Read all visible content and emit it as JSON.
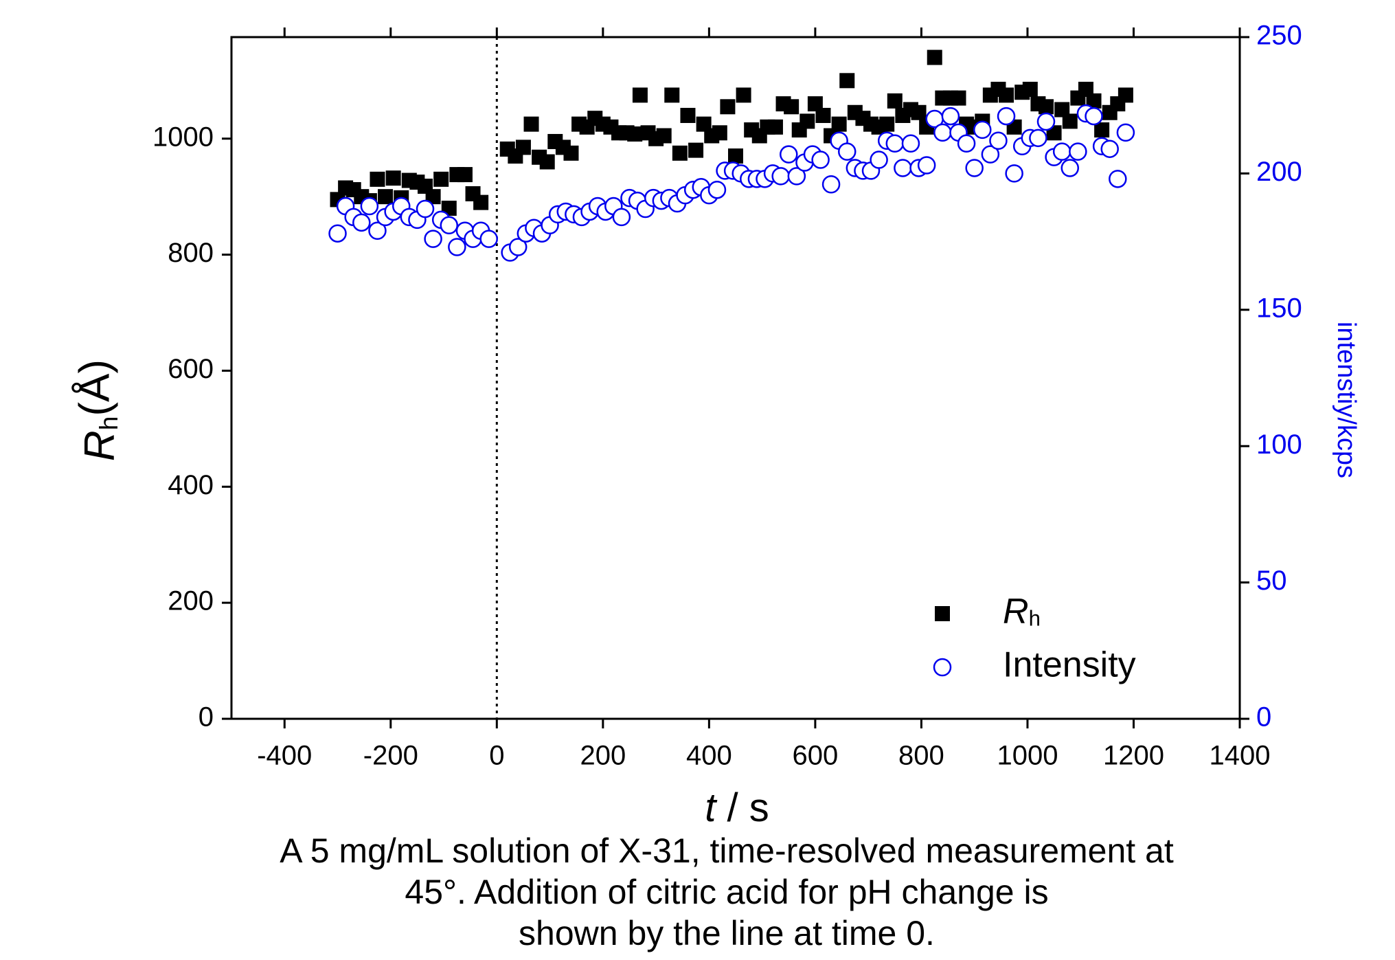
{
  "chart_data": {
    "type": "scatter",
    "xlabel": "t / s",
    "ylabel": "Rh(Å)",
    "y2label": "intenstiy/kcps",
    "caption": [
      "A 5 mg/mL solution of X-31, time-resolved measurement at",
      "45°.  Addition of citric acid for pH change is",
      "shown by the line at time 0."
    ],
    "xlim": [
      -500,
      1400
    ],
    "xticks": [
      -400,
      -200,
      0,
      200,
      400,
      600,
      800,
      1000,
      1200,
      1400
    ],
    "ylim": [
      0,
      1175
    ],
    "yticks": [
      0,
      200,
      400,
      600,
      800,
      1000
    ],
    "y2lim": [
      0,
      250
    ],
    "y2ticks": [
      0,
      50,
      100,
      150,
      200,
      250
    ],
    "vline_x": 0,
    "legend": "lower right",
    "series": [
      {
        "name": "Rh",
        "color": "#000000",
        "marker": "square",
        "x": [
          -300,
          -285,
          -270,
          -255,
          -240,
          -225,
          -210,
          -195,
          -180,
          -165,
          -150,
          -135,
          -120,
          -105,
          -90,
          -75,
          -60,
          -45,
          -30,
          20,
          35,
          50,
          65,
          80,
          95,
          110,
          125,
          140,
          155,
          170,
          185,
          200,
          215,
          230,
          245,
          260,
          270,
          285,
          300,
          315,
          330,
          345,
          360,
          375,
          390,
          405,
          420,
          435,
          450,
          465,
          480,
          495,
          510,
          525,
          540,
          555,
          570,
          585,
          600,
          615,
          630,
          645,
          660,
          675,
          690,
          705,
          720,
          735,
          750,
          765,
          780,
          795,
          810,
          825,
          840,
          855,
          870,
          885,
          900,
          915,
          930,
          945,
          960,
          975,
          990,
          1005,
          1020,
          1035,
          1050,
          1065,
          1080,
          1095,
          1110,
          1125,
          1140,
          1155,
          1170,
          1185
        ],
        "values": [
          895,
          915,
          912,
          900,
          893,
          930,
          900,
          932,
          898,
          928,
          925,
          918,
          900,
          930,
          880,
          938,
          938,
          905,
          890,
          982,
          970,
          985,
          1025,
          968,
          960,
          995,
          985,
          975,
          1025,
          1020,
          1035,
          1025,
          1020,
          1010,
          1010,
          1008,
          1075,
          1010,
          1000,
          1005,
          1075,
          975,
          1040,
          980,
          1025,
          1005,
          1010,
          1055,
          970,
          1075,
          1015,
          1005,
          1020,
          1020,
          1060,
          1055,
          1015,
          1030,
          1060,
          1040,
          1005,
          1025,
          1100,
          1045,
          1035,
          1025,
          1020,
          1025,
          1065,
          1040,
          1050,
          1045,
          1020,
          1140,
          1070,
          1070,
          1070,
          1025,
          1020,
          1030,
          1075,
          1085,
          1075,
          1020,
          1080,
          1085,
          1060,
          1055,
          1010,
          1050,
          1030,
          1070,
          1085,
          1065,
          1015,
          1045,
          1060,
          1075
        ]
      },
      {
        "name": "Intensity",
        "color": "#0000ee",
        "marker": "circle",
        "axis": "y2",
        "x": [
          -300,
          -285,
          -270,
          -255,
          -240,
          -225,
          -210,
          -195,
          -180,
          -165,
          -150,
          -135,
          -120,
          -105,
          -90,
          -75,
          -60,
          -45,
          -30,
          -15,
          25,
          40,
          55,
          70,
          85,
          100,
          115,
          130,
          145,
          160,
          175,
          190,
          205,
          220,
          235,
          250,
          265,
          280,
          295,
          310,
          325,
          340,
          355,
          370,
          385,
          400,
          415,
          430,
          445,
          460,
          475,
          490,
          505,
          520,
          535,
          550,
          565,
          580,
          595,
          610,
          630,
          645,
          660,
          675,
          690,
          705,
          720,
          735,
          750,
          765,
          780,
          795,
          810,
          825,
          840,
          855,
          870,
          885,
          900,
          915,
          930,
          945,
          960,
          975,
          990,
          1005,
          1020,
          1035,
          1050,
          1065,
          1080,
          1095,
          1110,
          1125,
          1140,
          1155,
          1170,
          1185
        ],
        "values": [
          178,
          188,
          184,
          182,
          188,
          179,
          184,
          186,
          188,
          184,
          183,
          187,
          176,
          183,
          181,
          173,
          179,
          176,
          179,
          176,
          171,
          173,
          178,
          180,
          178,
          181,
          185,
          186,
          185,
          184,
          186,
          188,
          186,
          188,
          184,
          191,
          190,
          187,
          191,
          190,
          191,
          189,
          192,
          194,
          195,
          192,
          194,
          201,
          201,
          200,
          198,
          198,
          198,
          200,
          199,
          207,
          199,
          204,
          207,
          205,
          196,
          212,
          208,
          202,
          201,
          201,
          205,
          212,
          211,
          202,
          211,
          202,
          203,
          220,
          215,
          221,
          215,
          211,
          202,
          216,
          207,
          212,
          221,
          200,
          210,
          213,
          213,
          219,
          206,
          208,
          202,
          208,
          222,
          221,
          210,
          209,
          198,
          215
        ]
      }
    ]
  }
}
